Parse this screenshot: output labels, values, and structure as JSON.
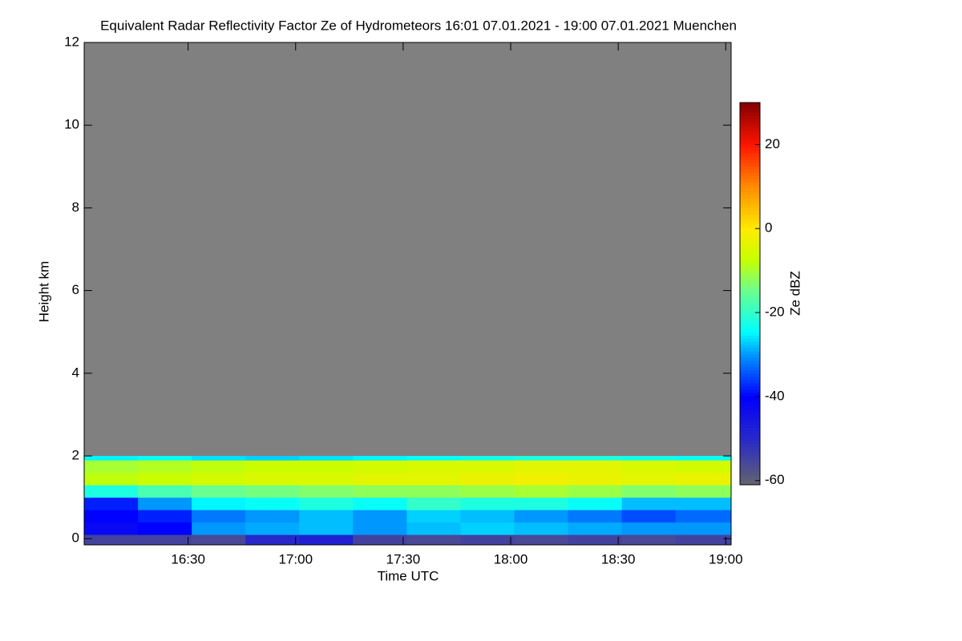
{
  "chart_data": {
    "type": "heatmap",
    "title": "Equivalent Radar Reflectivity Factor Ze of Hydrometeors   16:01 07.01.2021 - 19:00 07.01.2021 Muenchen",
    "x_label": "Time UTC",
    "y_label": "Height km",
    "colorbar_label": "Ze dBZ",
    "background_color": "#808080",
    "xlim": [
      961,
      1141.5
    ],
    "ylim": [
      -0.15,
      12
    ],
    "xticks": [
      {
        "value": 990,
        "label": "16:30"
      },
      {
        "value": 1020,
        "label": "17:00"
      },
      {
        "value": 1050,
        "label": "17:30"
      },
      {
        "value": 1080,
        "label": "18:00"
      },
      {
        "value": 1110,
        "label": "18:30"
      },
      {
        "value": 1140,
        "label": "19:00"
      }
    ],
    "yticks": [
      0,
      2,
      4,
      6,
      8,
      10,
      12
    ],
    "clim": [
      -61,
      30
    ],
    "cticks": [
      -60,
      -40,
      -20,
      0,
      20
    ],
    "x_edges": [
      961,
      976,
      991,
      1006,
      1021,
      1036,
      1051,
      1066,
      1081,
      1096,
      1111,
      1126,
      1141.5
    ],
    "y_edges": [
      -0.15,
      0.1,
      0.4,
      0.7,
      1.0,
      1.3,
      1.6,
      1.9,
      2.0
    ],
    "z": [
      [
        -55,
        -55,
        -56,
        -50,
        -48,
        -55,
        -56,
        -55,
        -56,
        -55,
        -56,
        -55
      ],
      [
        -42,
        -40,
        -30,
        -29,
        -28,
        -30,
        -28,
        -27,
        -28,
        -29,
        -30,
        -30
      ],
      [
        -40,
        -38,
        -32,
        -30,
        -28,
        -30,
        -27,
        -28,
        -30,
        -32,
        -35,
        -33
      ],
      [
        -38,
        -30,
        -25,
        -24,
        -22,
        -24,
        -20,
        -22,
        -22,
        -24,
        -28,
        -28
      ],
      [
        -22,
        -18,
        -15,
        -14,
        -13,
        -12,
        -12,
        -11,
        -10,
        -11,
        -13,
        -12
      ],
      [
        -8,
        -7,
        -6,
        -5,
        -5,
        -4,
        -4,
        -3,
        -2,
        -3,
        -4,
        -3
      ],
      [
        -10,
        -9,
        -8,
        -7,
        -7,
        -6,
        -5,
        -5,
        -4,
        -4,
        -5,
        -6
      ],
      [
        -25,
        -24,
        -26,
        -27,
        -26,
        -25,
        -24,
        -23,
        -22,
        -22,
        -23,
        -24
      ]
    ]
  }
}
